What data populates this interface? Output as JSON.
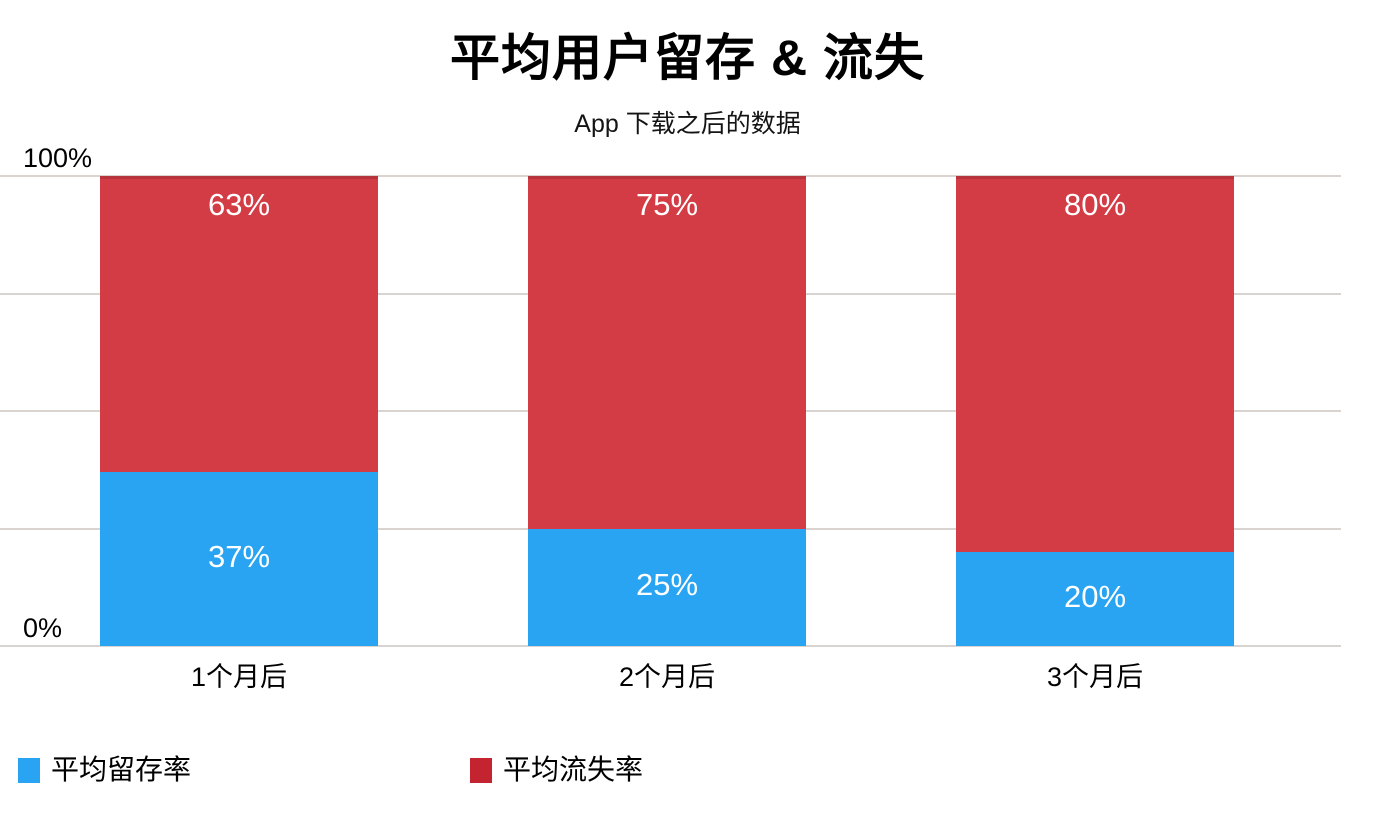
{
  "chart_data": {
    "type": "bar",
    "stacked": true,
    "title": "平均用户留存 & 流失",
    "subtitle": "App 下载之后的数据",
    "categories": [
      "1个月后",
      "2个月后",
      "3个月后"
    ],
    "series": [
      {
        "key": "retention",
        "name": "平均留存率",
        "color": "#29A4F2",
        "values": [
          37,
          25,
          20
        ]
      },
      {
        "key": "churn",
        "name": "平均流失率",
        "color": "#D43C45",
        "values": [
          63,
          75,
          80
        ]
      }
    ],
    "data_label_suffix": "%",
    "ylim": [
      0,
      100
    ],
    "grid_on": true,
    "y_axis": {
      "ticks": [
        {
          "value": 100,
          "label": "100%"
        },
        {
          "value": 0,
          "label": "0%"
        }
      ],
      "gridline_interval": 25,
      "gridline_color": "#D9D4D0"
    },
    "legend": {
      "position": "bottom",
      "items": [
        {
          "key": "retention",
          "label": "平均留存率",
          "color": "#29A4F2"
        },
        {
          "key": "churn",
          "label": "平均流失率",
          "color": "#C4242F"
        }
      ]
    },
    "background_color": "#FFFFFF",
    "title_color": "#000000",
    "data_label_color": "#FFFFFF"
  }
}
